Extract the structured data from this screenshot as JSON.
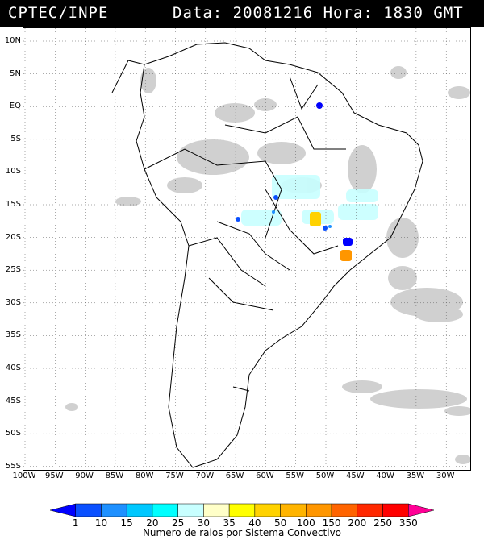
{
  "header": {
    "source": "CPTEC/INPE",
    "datetime": "Data: 20081216 Hora: 1830 GMT"
  },
  "map": {
    "latitude_labels": [
      "10N",
      "5N",
      "EQ",
      "5S",
      "10S",
      "15S",
      "20S",
      "25S",
      "30S",
      "35S",
      "40S",
      "45S",
      "50S",
      "55S"
    ],
    "longitude_labels": [
      "100W",
      "95W",
      "90W",
      "85W",
      "80W",
      "75W",
      "70W",
      "65W",
      "60W",
      "55W",
      "50W",
      "45W",
      "40W",
      "35W",
      "30W"
    ],
    "colors": {
      "land_outline": "#000000",
      "cloud": "#c8c8c8",
      "grid": "#555555"
    }
  },
  "legend": {
    "values": [
      "1",
      "10",
      "15",
      "20",
      "25",
      "30",
      "35",
      "40",
      "50",
      "100",
      "150",
      "200",
      "250",
      "350"
    ],
    "colors": [
      "#0000ff",
      "#0a50ff",
      "#1e90ff",
      "#00c8ff",
      "#00ffff",
      "#c8ffff",
      "#ffffc8",
      "#ffff00",
      "#ffd200",
      "#ffb400",
      "#ff9600",
      "#ff6400",
      "#ff2800",
      "#ff0000",
      "#ff0096"
    ],
    "caption": "Numero de raios por Sistema Convectivo"
  }
}
